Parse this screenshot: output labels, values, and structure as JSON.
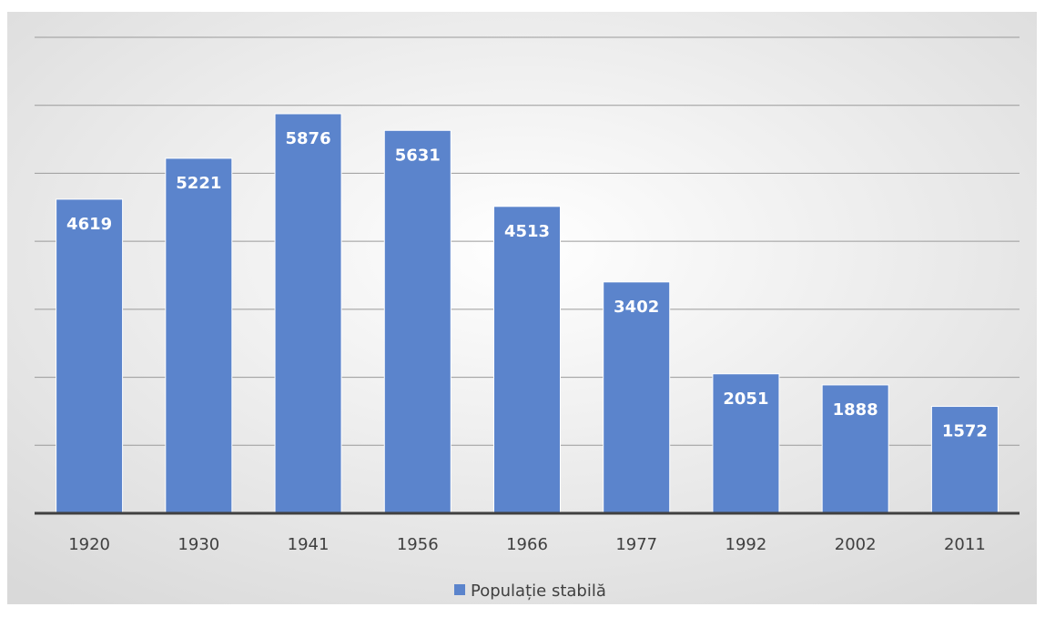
{
  "colors": {
    "bar": "#5b84cc",
    "gridline": "#9a9a9a",
    "axis": "#404040",
    "background_center": "#ffffff",
    "background_edge": "#d9d9d9"
  },
  "chart_data": {
    "type": "bar",
    "categories": [
      "1920",
      "1930",
      "1941",
      "1956",
      "1966",
      "1977",
      "1992",
      "2002",
      "2011"
    ],
    "series": [
      {
        "name": "Populație stabilă",
        "values": [
          4619,
          5221,
          5876,
          5631,
          4513,
          3402,
          2051,
          1888,
          1572
        ]
      }
    ],
    "title": "",
    "xlabel": "",
    "ylabel": "",
    "ylim": [
      0,
      7000
    ],
    "gridlines": true,
    "y_tick_labels_visible": false,
    "data_labels": true,
    "data_label_position": "inside-top",
    "legend": {
      "position": "bottom",
      "entries": [
        "Populație stabilă"
      ]
    }
  }
}
